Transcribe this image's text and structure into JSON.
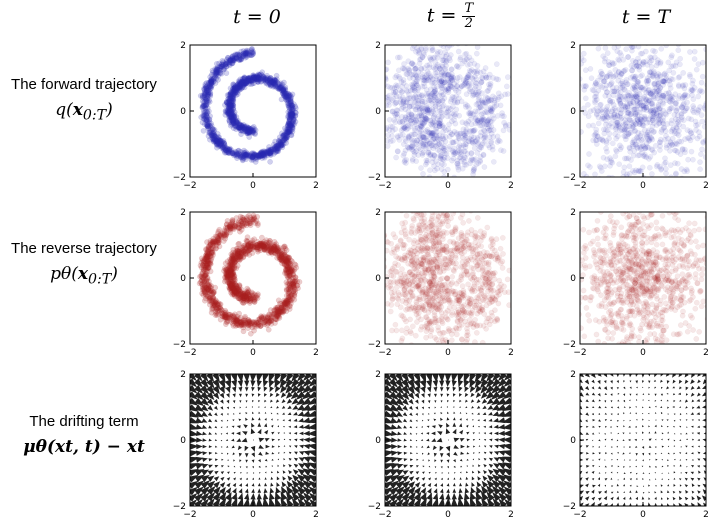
{
  "columns": [
    {
      "prefix": "t = ",
      "value": "0"
    },
    {
      "prefix": "t = ",
      "frac_num": "T",
      "frac_den": "2"
    },
    {
      "prefix": "t = ",
      "value": "T"
    }
  ],
  "rows": [
    {
      "title": "The forward trajectory",
      "math": "q(x0:T)",
      "math_main": "q(",
      "math_bold": "x",
      "math_sub": "0:T",
      "math_end": ")"
    },
    {
      "title": "The reverse trajectory",
      "math": "pθ(x0:T)",
      "math_main": "pθ(",
      "math_bold": "x",
      "math_sub": "0:T",
      "math_end": ")"
    },
    {
      "title": "The drifting term",
      "math": "μθ(xt, t) − xt",
      "math_main": "μθ(xt, t) − xt"
    }
  ],
  "axis_ticks": {
    "x": [
      "−2",
      "0",
      "2"
    ],
    "y": [
      "−2",
      "0",
      "2"
    ]
  },
  "colors": {
    "forward": "#2b2bb0",
    "reverse": "#a82222",
    "drift": "#222222"
  },
  "chart_data": [
    {
      "type": "scatter",
      "panel": "forward-t0",
      "series": "blue",
      "pattern": "swiss-roll",
      "noise": 0.05,
      "xlim": [
        -2,
        2
      ],
      "ylim": [
        -2,
        2
      ]
    },
    {
      "type": "scatter",
      "panel": "forward-tT2",
      "series": "blue",
      "pattern": "swiss-roll",
      "noise": 0.32,
      "xlim": [
        -2,
        2
      ],
      "ylim": [
        -2,
        2
      ]
    },
    {
      "type": "scatter",
      "panel": "forward-tT",
      "series": "blue",
      "pattern": "gaussian",
      "xlim": [
        -2,
        2
      ],
      "ylim": [
        -2,
        2
      ]
    },
    {
      "type": "scatter",
      "panel": "reverse-t0",
      "series": "red",
      "pattern": "swiss-roll",
      "noise": 0.07,
      "xlim": [
        -2,
        2
      ],
      "ylim": [
        -2,
        2
      ]
    },
    {
      "type": "scatter",
      "panel": "reverse-tT2",
      "series": "red",
      "pattern": "swiss-roll",
      "noise": 0.35,
      "xlim": [
        -2,
        2
      ],
      "ylim": [
        -2,
        2
      ]
    },
    {
      "type": "scatter",
      "panel": "reverse-tT",
      "series": "red",
      "pattern": "gaussian",
      "xlim": [
        -2,
        2
      ],
      "ylim": [
        -2,
        2
      ]
    },
    {
      "type": "quiver",
      "panel": "drift-t0",
      "strength": 1.0,
      "xlim": [
        -2,
        2
      ],
      "ylim": [
        -2,
        2
      ]
    },
    {
      "type": "quiver",
      "panel": "drift-tT2",
      "strength": 1.0,
      "xlim": [
        -2,
        2
      ],
      "ylim": [
        -2,
        2
      ]
    },
    {
      "type": "quiver",
      "panel": "drift-tT",
      "strength": 0.25,
      "xlim": [
        -2,
        2
      ],
      "ylim": [
        -2,
        2
      ]
    }
  ]
}
